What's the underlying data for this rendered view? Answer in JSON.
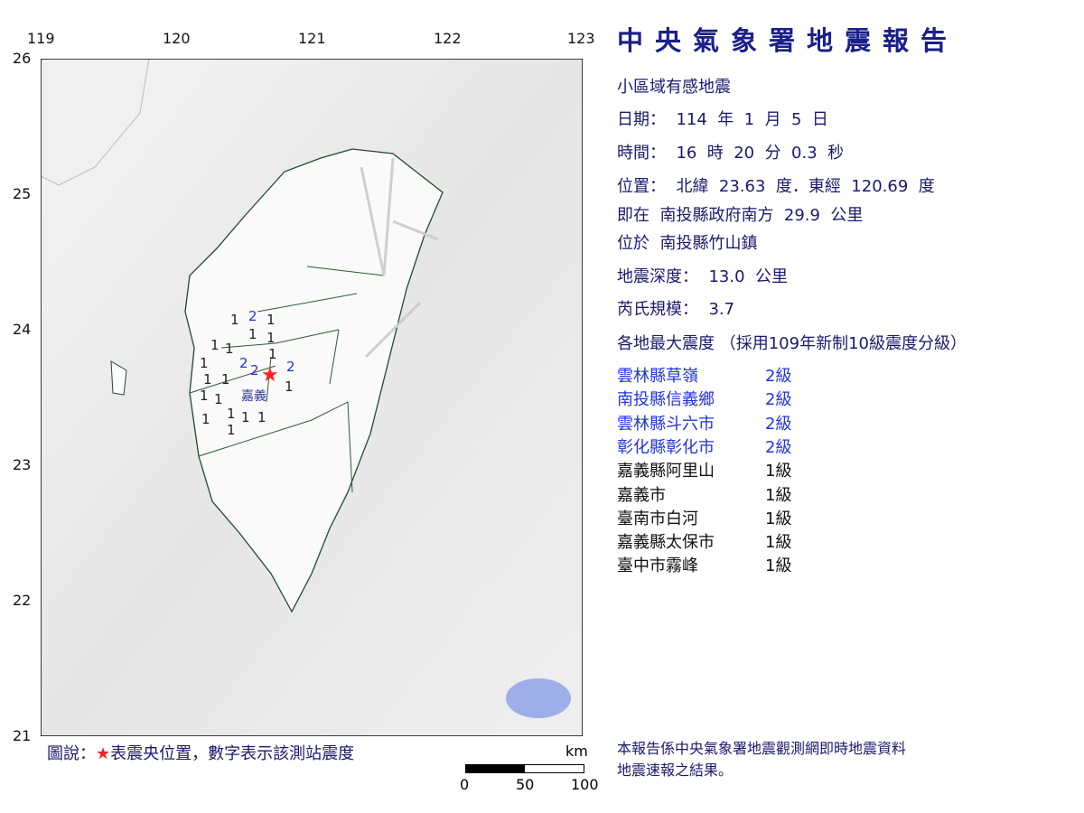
{
  "map": {
    "lon_ticks": [
      "119",
      "120",
      "121",
      "122",
      "123"
    ],
    "lat_ticks": [
      "26",
      "25",
      "24",
      "23",
      "22",
      "21"
    ],
    "epicenter": {
      "lat": 23.63,
      "lon": 120.69
    },
    "city_label": "嘉義",
    "station_intensities": [
      "2",
      "1",
      "1",
      "1",
      "1",
      "1",
      "1",
      "1",
      "1",
      "2",
      "2",
      "2",
      "1",
      "1",
      "1",
      "1",
      "1",
      "1",
      "1",
      "1",
      "1",
      "1"
    ],
    "colors": {
      "intensity_1": "#222222",
      "intensity_2": "#2233dd",
      "epicenter": "#ff2020"
    }
  },
  "legend": {
    "prefix": "圖說：",
    "star": "★",
    "text": "表震央位置，數字表示該測站震度"
  },
  "scale": {
    "unit": "km",
    "labels": [
      "0",
      "50",
      "100"
    ]
  },
  "report": {
    "title": "中央氣象署地震報告",
    "type": "小區域有感地震",
    "date": "日期：  114  年  1  月  5  日",
    "time": "時間：  16  時  20  分  0.3  秒",
    "position": "位置：  北緯  23.63  度．東經  120.69  度",
    "relative": "即在  南投縣政府南方  29.9  公里",
    "located": "位於  南投縣竹山鎮",
    "depth": "地震深度：  13.0  公里",
    "magnitude": "芮氏規模：  3.7",
    "intensity_header": "各地最大震度 （採用109年新制10級震度分級）",
    "stations": [
      {
        "name": "雲林縣草嶺",
        "level": "2級"
      },
      {
        "name": "南投縣信義鄉",
        "level": "2級"
      },
      {
        "name": "雲林縣斗六市",
        "level": "2級"
      },
      {
        "name": "彰化縣彰化市",
        "level": "2級"
      },
      {
        "name": "嘉義縣阿里山",
        "level": "1級"
      },
      {
        "name": "嘉義市",
        "level": "1級"
      },
      {
        "name": "臺南市白河",
        "level": "1級"
      },
      {
        "name": "嘉義縣太保市",
        "level": "1級"
      },
      {
        "name": "臺中市霧峰",
        "level": "1級"
      }
    ],
    "footer_line1": "本報告係中央氣象署地震觀測網即時地震資料",
    "footer_line2": "地震速報之結果。"
  }
}
